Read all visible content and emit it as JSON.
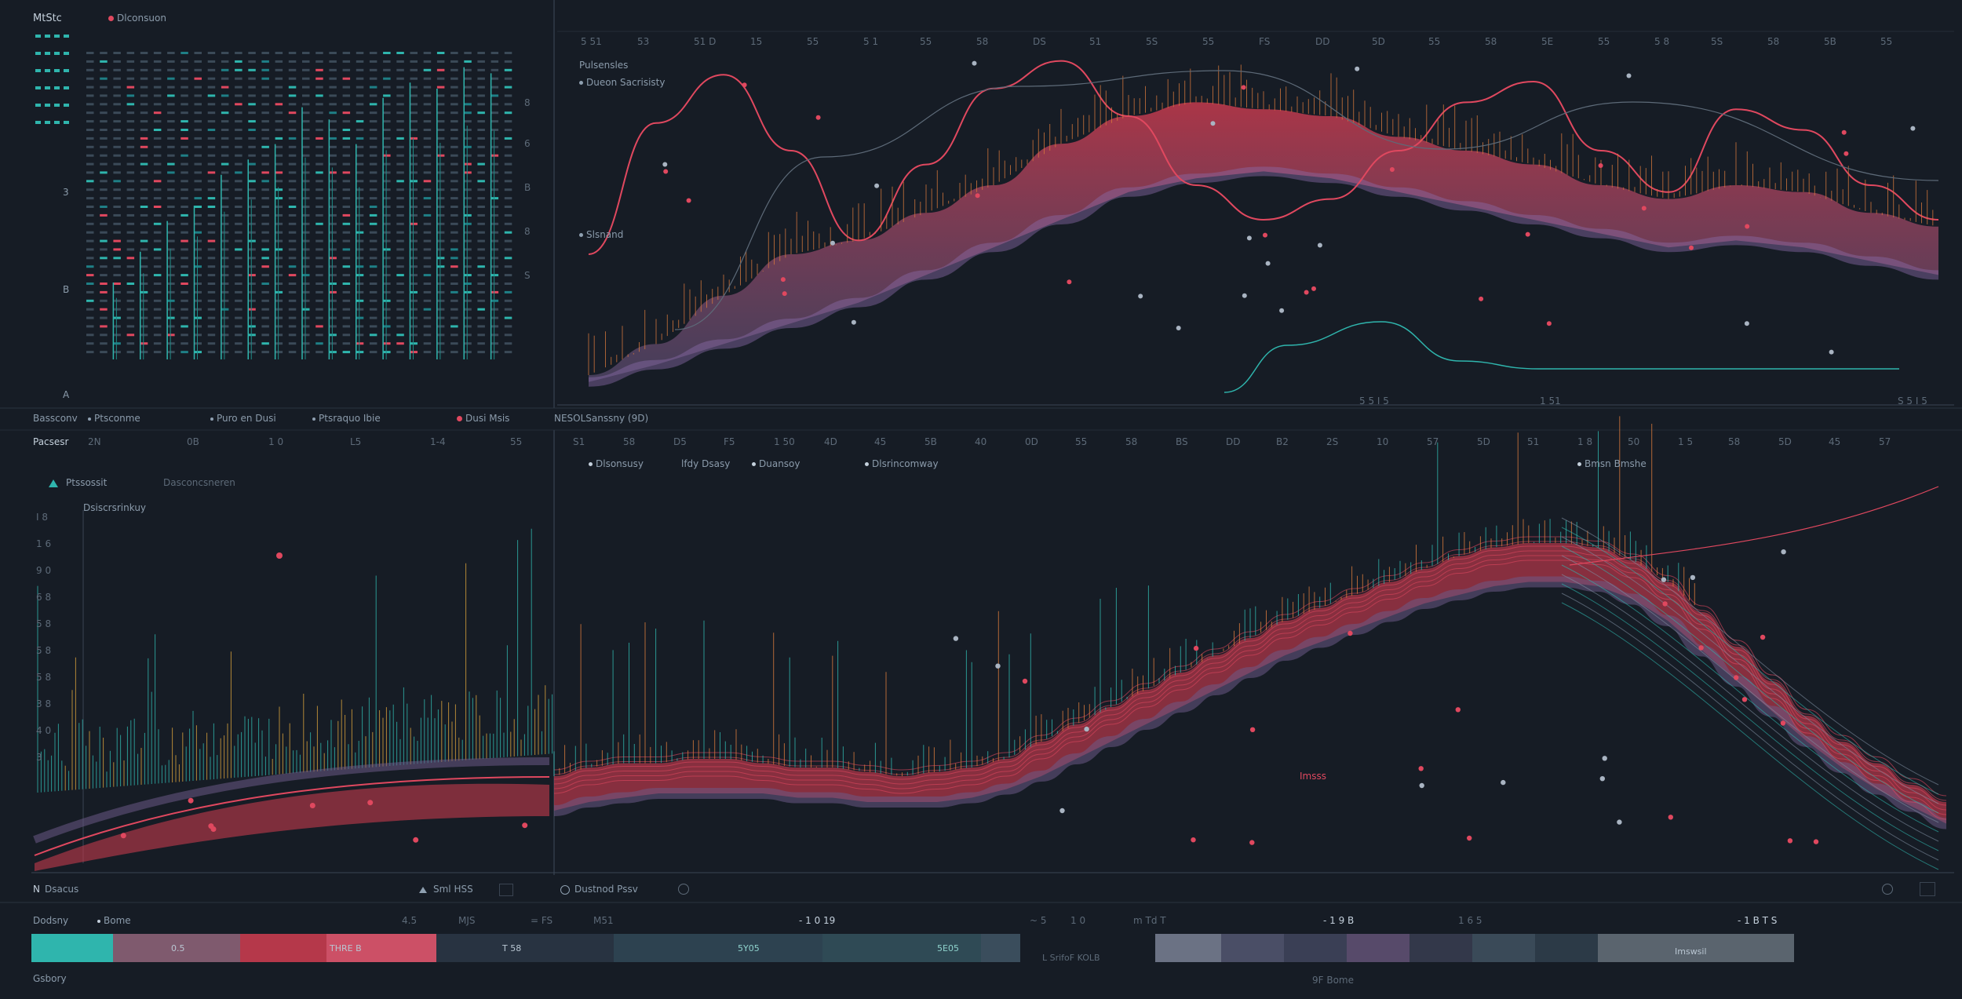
{
  "colors": {
    "background": "#161c25",
    "panel_border": "#2a3340",
    "teal": "#2fb5ad",
    "red": "#e0485f",
    "rose": "#b5384a",
    "orange": "#d97a3c",
    "violet": "#6b5a86"
  },
  "header": {
    "title": "MtStc",
    "legend_label": "Dlconsuon"
  },
  "top_left": {
    "y_ticks": [
      "3",
      "B",
      "A"
    ],
    "right_ticks": [
      "8",
      "6",
      "B",
      "8",
      "S"
    ]
  },
  "top_right": {
    "top_ticks": [
      "5 51",
      "53",
      "51 D",
      "15",
      "55",
      "5 1",
      "55",
      "58",
      "DS",
      "51",
      "5S",
      "55",
      "FS",
      "DD",
      "5D",
      "55",
      "58",
      "5E",
      "55",
      "5 8",
      "5S",
      "58",
      "5B",
      "55"
    ],
    "legend": [
      "Pulsensles",
      "Dueon Sacrisisty",
      "Slsnand"
    ],
    "bottom_ticks": [
      "5 5 I 5",
      "1 51",
      "S 5 I 5"
    ]
  },
  "middle_labels": [
    {
      "text": "Bassconv",
      "color": "#8b9bab"
    },
    {
      "text": "Ptsconme",
      "color": "#8b9bab"
    },
    {
      "text": "Puro en Dusi",
      "color": "#8b9bab"
    },
    {
      "text": "Ptsraquo Ibie",
      "color": "#8b9bab"
    },
    {
      "text": "Dusi Msis",
      "color": "#8b9bab"
    },
    {
      "text": "NESOLSanssny (9D)",
      "color": "#8b9bab"
    }
  ],
  "bottom_left": {
    "title": "Pacsesr",
    "top_ticks": [
      "2N",
      "0B",
      "1 0",
      "L5",
      "1-4",
      "55"
    ],
    "legend": [
      "Ptssossit",
      "Dasconcsneren"
    ],
    "subtitle": "Dsiscrsrinkuy",
    "y_ticks": [
      "I 8",
      "1 6",
      "9 0",
      "6 8",
      "5 8",
      "5 8",
      "5 8",
      "3 8",
      "4 0",
      "3"
    ],
    "footer": "Dsacus",
    "footer_right": "Sml HSS"
  },
  "bottom_right": {
    "top_ticks": [
      "S1",
      "58",
      "D5",
      "F5",
      "1 50",
      "4D",
      "45",
      "5B",
      "40",
      "0D",
      "55",
      "58",
      "BS",
      "DD",
      "B2",
      "2S",
      "10",
      "57",
      "5D",
      "51",
      "1 8",
      "50",
      "1 5",
      "58",
      "5D",
      "45",
      "57"
    ],
    "legend": [
      "Dlsonsusy",
      "lfdy Dsasy",
      "Duansoy",
      "Dlsrincomway"
    ],
    "legend_right": "Bmsn Bmshe",
    "annotation": "Imsss",
    "footer": "Dustnod Pssv"
  },
  "bottom_bar": {
    "header_left": "Dodsny",
    "header_mid": "Bome",
    "ticks": [
      "4.5",
      "MJS",
      "= FS",
      "M51",
      "- 1 0 19",
      "~ 5",
      "1 0",
      "m Td T",
      "- 1 9 B",
      "1 6 5",
      "- 1 B T S"
    ],
    "segments_left": [
      "0.5",
      "THRE B",
      "T 58",
      "5Y05",
      "5E05"
    ],
    "segments_right": [
      "Imswsil"
    ],
    "footer_left": "Gsbory",
    "footer_mid": "L SrifoF KOLB",
    "footer_right": "9F Bome"
  },
  "chart_data": [
    {
      "type": "heatmap",
      "title": "MtStc",
      "description_legend": "Dlconsuon",
      "rows": 36,
      "cols": 32,
      "y_ticks": [
        "3",
        "B",
        "A"
      ],
      "bars_x": [
        2,
        4,
        6,
        8,
        10,
        12,
        14,
        16,
        18,
        20,
        22,
        24,
        26,
        28,
        30
      ],
      "bars_values": [
        0.25,
        0.35,
        0.45,
        0.5,
        0.6,
        0.65,
        0.7,
        0.82,
        0.78,
        0.7,
        0.85,
        0.9,
        0.88,
        0.95,
        0.93
      ]
    },
    {
      "type": "area",
      "x": [
        0,
        1,
        2,
        3,
        4,
        5,
        6,
        7,
        8,
        9,
        10,
        11,
        12,
        13,
        14,
        15,
        16,
        17,
        18,
        19,
        20
      ],
      "series": [
        {
          "name": "Pulsensles",
          "values": [
            5,
            14,
            28,
            40,
            44,
            52,
            60,
            72,
            80,
            84,
            82,
            80,
            74,
            70,
            66,
            60,
            56,
            60,
            58,
            52,
            48
          ]
        },
        {
          "name": "Dueon Sacrisisty",
          "values": [
            3,
            8,
            14,
            20,
            26,
            34,
            42,
            50,
            58,
            62,
            64,
            62,
            58,
            54,
            50,
            46,
            42,
            44,
            42,
            38,
            34
          ]
        },
        {
          "name": "Slsnand",
          "values": [
            40,
            78,
            92,
            70,
            44,
            66,
            88,
            96,
            80,
            60,
            50,
            56,
            70,
            84,
            90,
            70,
            58,
            82,
            76,
            60,
            50
          ]
        }
      ],
      "ylim": [
        0,
        100
      ]
    },
    {
      "type": "area",
      "x": [
        0,
        1,
        2,
        3,
        4,
        5,
        6,
        7,
        8,
        9,
        10,
        11,
        12,
        13,
        14,
        15,
        16,
        17,
        18,
        19,
        20,
        21,
        22,
        23,
        24,
        25,
        26,
        27,
        28,
        29,
        30,
        31,
        32,
        33,
        34,
        35,
        36,
        37,
        38,
        39,
        40
      ],
      "series": [
        {
          "name": "Ptssossit",
          "values": [
            22,
            24,
            25,
            25,
            26,
            26,
            25,
            24,
            24,
            23,
            22,
            23,
            24,
            26,
            30,
            34,
            38,
            42,
            46,
            50,
            54,
            58,
            61,
            64,
            67,
            70,
            73,
            75,
            76,
            76,
            75,
            72,
            67,
            60,
            52,
            44,
            36,
            30,
            25,
            20,
            16
          ]
        },
        {
          "name": "Dasconcsneren",
          "values": [
            14,
            16,
            17,
            18,
            18,
            18,
            18,
            17,
            17,
            16,
            16,
            16,
            17,
            19,
            22,
            26,
            30,
            34,
            38,
            42,
            46,
            50,
            53,
            56,
            59,
            62,
            64,
            66,
            67,
            67,
            66,
            63,
            58,
            51,
            44,
            37,
            30,
            24,
            19,
            15,
            11
          ]
        }
      ],
      "ylim": [
        0,
        100
      ]
    },
    {
      "type": "bar",
      "categories": [
        "0.5",
        "THRE B",
        "T 58",
        "5Y05",
        "5E05",
        "Imswsil"
      ],
      "values": [
        1,
        1,
        1,
        1,
        1,
        1
      ]
    }
  ]
}
